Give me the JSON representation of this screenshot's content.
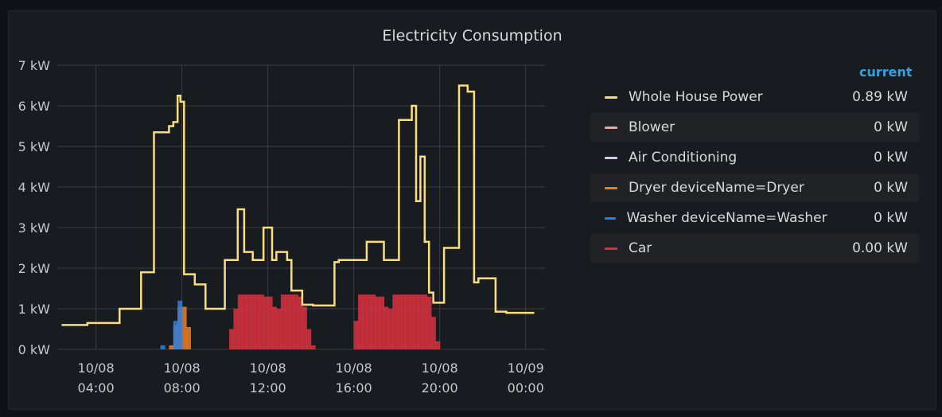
{
  "panel": {
    "title": "Electricity Consumption"
  },
  "legend": {
    "header": "current",
    "items": [
      {
        "name": "Whole House Power",
        "value": "0.89 kW",
        "color": "#fade7e"
      },
      {
        "name": "Blower",
        "value": "0 kW",
        "color": "#ff9ca1"
      },
      {
        "name": "Air Conditioning",
        "value": "0 kW",
        "color": "#d9c7f7"
      },
      {
        "name": "Dryer deviceName=Dryer",
        "value": "0 kW",
        "color": "#ef7d22"
      },
      {
        "name": "Washer deviceName=Washer",
        "value": "0 kW",
        "color": "#2f7fde"
      },
      {
        "name": "Car",
        "value": "0.00 kW",
        "color": "#d9323f"
      }
    ]
  },
  "chart_data": {
    "type": "line",
    "title": "Electricity Consumption",
    "ylabel": "kW",
    "unit": "kW",
    "ylim": [
      0,
      7
    ],
    "xlim": [
      2.2,
      24.9
    ],
    "yticks": [
      0,
      1,
      2,
      3,
      4,
      5,
      6,
      7
    ],
    "ytick_labels": [
      "0 kW",
      "1 kW",
      "2 kW",
      "3 kW",
      "4 kW",
      "5 kW",
      "6 kW",
      "7 kW"
    ],
    "xticks": [
      4,
      8,
      12,
      16,
      20,
      24
    ],
    "xtick_labels": [
      {
        "date": "10/08",
        "time": "04:00"
      },
      {
        "date": "10/08",
        "time": "08:00"
      },
      {
        "date": "10/08",
        "time": "12:00"
      },
      {
        "date": "10/08",
        "time": "16:00"
      },
      {
        "date": "10/08",
        "time": "20:00"
      },
      {
        "date": "10/09",
        "time": "00:00"
      }
    ],
    "grid": true,
    "series": [
      {
        "name": "Whole House Power",
        "kind": "step-line",
        "color": "#fade7e",
        "x": [
          2.4,
          3.6,
          3.6,
          5.1,
          5.1,
          6.1,
          6.1,
          6.7,
          6.7,
          7.4,
          7.4,
          7.6,
          7.6,
          7.8,
          7.8,
          7.93,
          7.93,
          8.1,
          8.1,
          8.5,
          8.5,
          8.6,
          8.6,
          9.1,
          9.1,
          10.0,
          10.0,
          10.6,
          10.6,
          10.9,
          10.9,
          11.3,
          11.3,
          11.8,
          11.8,
          12.2,
          12.2,
          12.4,
          12.4,
          12.9,
          12.9,
          13.1,
          13.1,
          13.6,
          13.6,
          14.1,
          14.1,
          15.1,
          15.1,
          15.3,
          15.3,
          16.6,
          16.6,
          17.4,
          17.4,
          17.7,
          17.7,
          18.1,
          18.1,
          18.7,
          18.7,
          18.9,
          18.9,
          19.1,
          19.1,
          19.3,
          19.3,
          19.5,
          19.5,
          19.7,
          19.7,
          19.9,
          19.9,
          20.2,
          20.2,
          20.9,
          20.9,
          21.3,
          21.3,
          21.6,
          21.6,
          21.8,
          21.8,
          22.6,
          22.6,
          23.1,
          23.1,
          23.7,
          23.7,
          24.4
        ],
        "y": [
          0.6,
          0.6,
          0.65,
          0.65,
          1.0,
          1.0,
          1.9,
          1.9,
          5.35,
          5.35,
          5.5,
          5.5,
          5.6,
          5.6,
          6.25,
          6.25,
          6.1,
          6.1,
          1.85,
          1.85,
          1.85,
          1.85,
          1.6,
          1.6,
          1.0,
          1.0,
          2.2,
          2.2,
          3.45,
          3.45,
          2.4,
          2.4,
          2.2,
          2.2,
          3.0,
          3.0,
          2.2,
          2.2,
          2.4,
          2.4,
          2.2,
          2.2,
          1.45,
          1.45,
          1.1,
          1.1,
          1.08,
          1.08,
          2.15,
          2.15,
          2.2,
          2.2,
          2.65,
          2.65,
          2.2,
          2.2,
          2.2,
          2.2,
          5.65,
          5.65,
          6.0,
          6.0,
          3.65,
          3.65,
          4.75,
          4.75,
          2.65,
          2.65,
          1.4,
          1.4,
          1.15,
          1.15,
          1.15,
          1.15,
          2.5,
          2.5,
          6.5,
          6.5,
          6.35,
          6.35,
          1.65,
          1.65,
          1.75,
          1.75,
          0.93,
          0.93,
          0.9,
          0.9,
          0.9,
          0.9
        ]
      },
      {
        "name": "Blower",
        "kind": "line",
        "color": "#ff9ca1",
        "x": [],
        "y": []
      },
      {
        "name": "Air Conditioning",
        "kind": "line",
        "color": "#d9c7f7",
        "x": [],
        "y": []
      },
      {
        "name": "Car",
        "kind": "bars",
        "color": "#d9323f",
        "x": [
          10.2,
          10.4,
          10.6,
          10.8,
          11.0,
          11.2,
          11.4,
          11.6,
          11.8,
          12.0,
          12.2,
          12.4,
          12.6,
          12.8,
          13.0,
          13.2,
          13.4,
          13.6,
          13.8,
          14.0,
          16.0,
          16.2,
          16.4,
          16.6,
          16.8,
          17.0,
          17.2,
          17.4,
          17.6,
          17.8,
          18.0,
          18.2,
          18.4,
          18.6,
          18.8,
          19.0,
          19.2,
          19.4,
          19.6,
          19.8,
          20.0
        ],
        "y": [
          0.5,
          1.0,
          1.35,
          1.35,
          1.35,
          1.35,
          1.35,
          1.35,
          1.3,
          1.3,
          1.05,
          1.0,
          1.35,
          1.35,
          1.35,
          1.35,
          1.3,
          1.05,
          0.5,
          0.1,
          0.7,
          1.35,
          1.35,
          1.35,
          1.35,
          1.3,
          1.3,
          1.05,
          1.0,
          1.35,
          1.35,
          1.35,
          1.35,
          1.35,
          1.35,
          1.35,
          1.35,
          1.3,
          0.8,
          0.2,
          0.0
        ]
      },
      {
        "name": "Dryer deviceName=Dryer",
        "kind": "bars",
        "color": "#ef7d22",
        "x": [
          7.4,
          7.6,
          7.8,
          8.0,
          8.2
        ],
        "y": [
          0.1,
          0.6,
          1.05,
          1.05,
          0.55
        ]
      },
      {
        "name": "Washer deviceName=Washer",
        "kind": "bars",
        "color": "#2f7fde",
        "x": [
          7.0,
          7.6,
          7.8
        ],
        "y": [
          0.1,
          0.7,
          1.2
        ]
      }
    ]
  }
}
